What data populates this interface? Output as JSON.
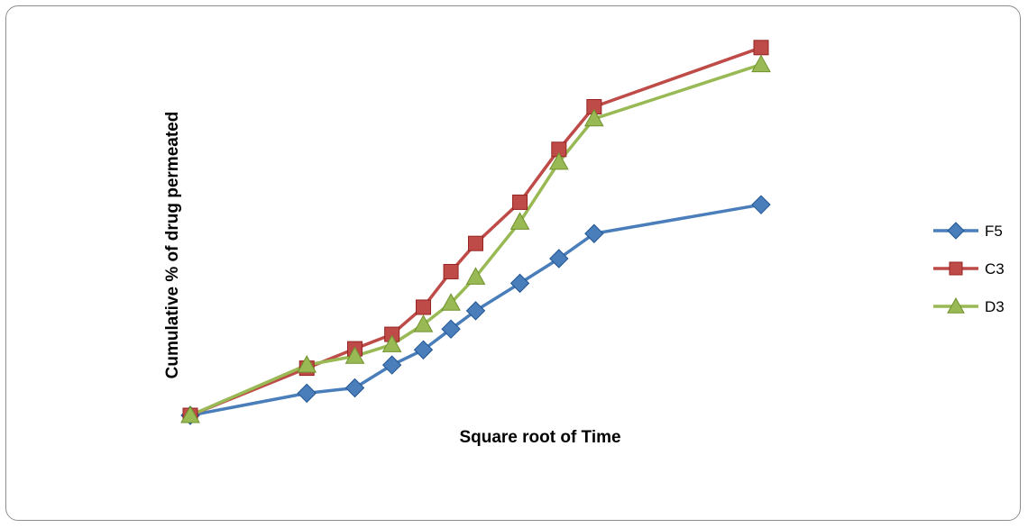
{
  "chart_data": {
    "type": "line",
    "title": "",
    "xlabel": "Square root of Time",
    "ylabel": "Cumulative % of drug permeated",
    "x": [
      0,
      2.45,
      3.46,
      4.24,
      4.9,
      5.48,
      6.0,
      6.93,
      7.75,
      8.49,
      12.0
    ],
    "xlim": [
      0,
      12.0
    ],
    "ylim": [
      0,
      100
    ],
    "grid": false,
    "axes_visible": false,
    "legend_position": "right",
    "series": [
      {
        "name": "F5",
        "color": "#4a7ebb",
        "marker": "diamond",
        "values": [
          0,
          6.3,
          7.8,
          14.3,
          18.6,
          24.5,
          29.7,
          37.5,
          44.5,
          51.6,
          59.8
        ]
      },
      {
        "name": "C3",
        "color": "#be4b48",
        "marker": "square",
        "values": [
          0,
          13.4,
          18.9,
          23.0,
          30.7,
          40.8,
          48.8,
          60.5,
          75.5,
          87.6,
          104.4
        ]
      },
      {
        "name": "D3",
        "color": "#98b954",
        "marker": "triangle",
        "values": [
          0,
          14.3,
          16.8,
          20.1,
          25.8,
          31.9,
          39.3,
          54.9,
          71.9,
          84.2,
          99.6
        ]
      }
    ]
  }
}
